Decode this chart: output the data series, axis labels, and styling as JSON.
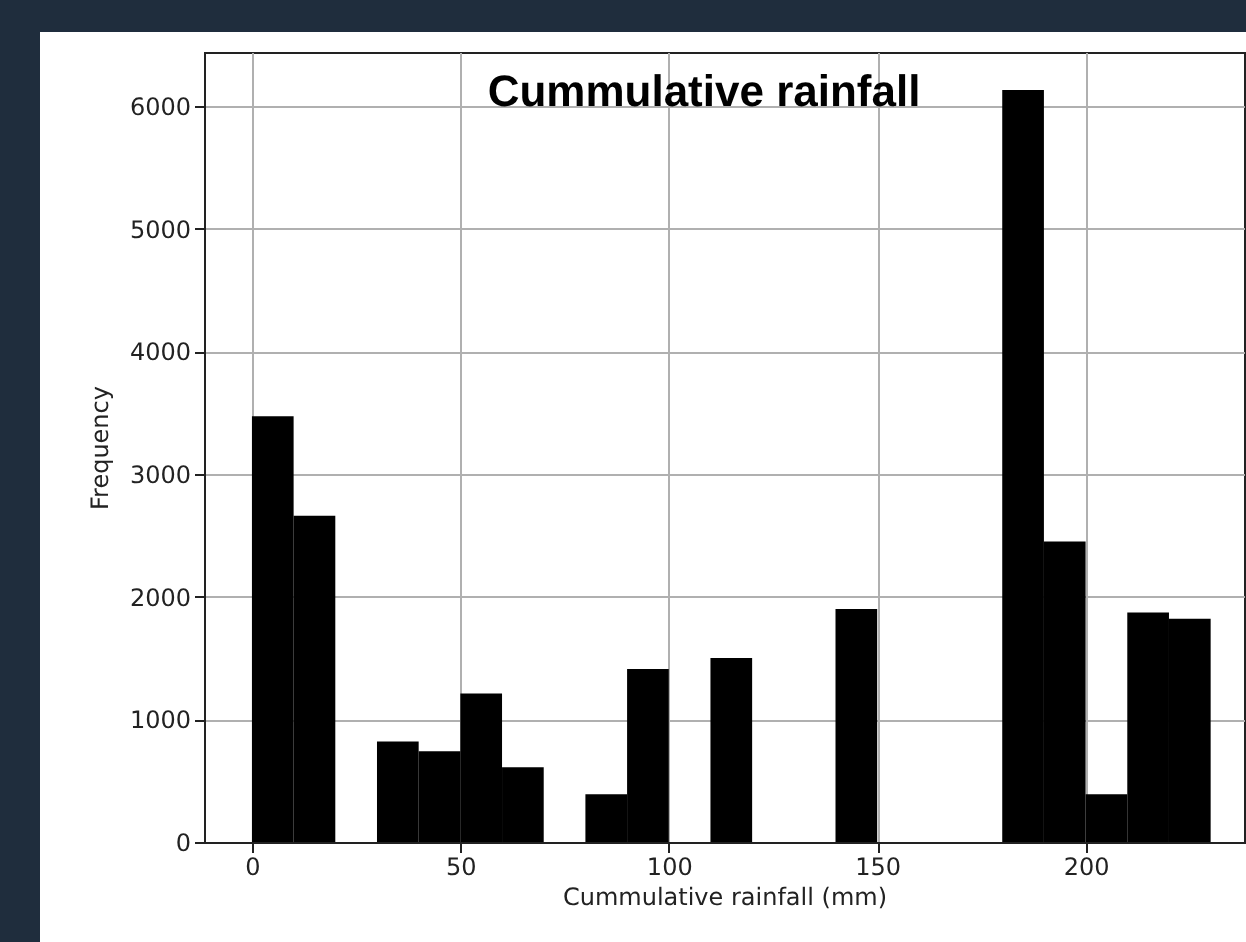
{
  "chart_data": {
    "type": "histogram",
    "title": "Cummulative rainfall",
    "xlabel": "Cummulative rainfall (mm)",
    "ylabel": "Frequency",
    "bins": [
      0,
      10,
      20,
      30,
      40,
      50,
      60,
      70,
      80,
      90,
      100,
      110,
      120,
      130,
      140,
      150,
      160,
      170,
      180,
      190,
      200,
      210,
      220,
      230
    ],
    "values": [
      3470,
      2660,
      0,
      820,
      740,
      1210,
      610,
      0,
      390,
      1410,
      0,
      1500,
      0,
      0,
      1900,
      0,
      0,
      0,
      6130,
      2450,
      390,
      1870,
      1820
    ],
    "color": "#000000",
    "xlim": [
      -11.5,
      238
    ],
    "xticks": [
      0,
      50,
      100,
      150,
      200
    ],
    "ylim": [
      0,
      6440
    ],
    "yticks": [
      0,
      1000,
      2000,
      3000,
      4000,
      5000,
      6000
    ],
    "grid": true
  }
}
